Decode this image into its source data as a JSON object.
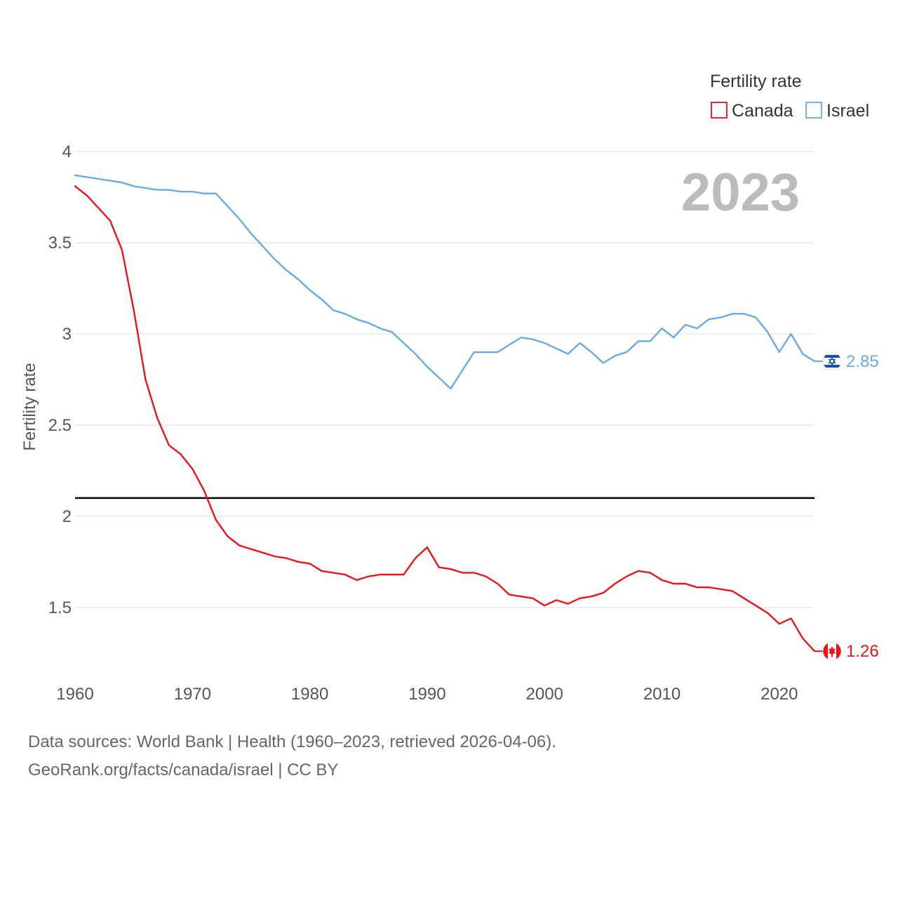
{
  "chart_data": {
    "type": "line",
    "legend_title": "Fertility rate",
    "ylabel": "Fertility rate",
    "xlabel": "",
    "year_label": "2023",
    "xlim": [
      1960,
      2023
    ],
    "ylim": [
      1.08,
      4
    ],
    "x_ticks": [
      1960,
      1970,
      1980,
      1990,
      2000,
      2010,
      2020
    ],
    "y_ticks": [
      1.5,
      2,
      2.5,
      3,
      3.5,
      4
    ],
    "reference_line": 2.1,
    "x": [
      1960,
      1961,
      1962,
      1963,
      1964,
      1965,
      1966,
      1967,
      1968,
      1969,
      1970,
      1971,
      1972,
      1973,
      1974,
      1975,
      1976,
      1977,
      1978,
      1979,
      1980,
      1981,
      1982,
      1983,
      1984,
      1985,
      1986,
      1987,
      1988,
      1989,
      1990,
      1991,
      1992,
      1993,
      1994,
      1995,
      1996,
      1997,
      1998,
      1999,
      2000,
      2001,
      2002,
      2003,
      2004,
      2005,
      2006,
      2007,
      2008,
      2009,
      2010,
      2011,
      2012,
      2013,
      2014,
      2015,
      2016,
      2017,
      2018,
      2019,
      2020,
      2021,
      2022,
      2023
    ],
    "series": [
      {
        "name": "Canada",
        "color": "#e8151b",
        "end_label": "1.26",
        "icon": "canada-flag-icon",
        "values": [
          3.81,
          3.76,
          3.69,
          3.62,
          3.46,
          3.13,
          2.75,
          2.54,
          2.39,
          2.34,
          2.26,
          2.14,
          1.98,
          1.89,
          1.84,
          1.82,
          1.8,
          1.78,
          1.77,
          1.75,
          1.74,
          1.7,
          1.69,
          1.68,
          1.65,
          1.67,
          1.68,
          1.68,
          1.68,
          1.77,
          1.83,
          1.72,
          1.71,
          1.69,
          1.69,
          1.67,
          1.63,
          1.57,
          1.56,
          1.55,
          1.51,
          1.54,
          1.52,
          1.55,
          1.56,
          1.58,
          1.63,
          1.67,
          1.7,
          1.69,
          1.65,
          1.63,
          1.63,
          1.61,
          1.61,
          1.6,
          1.59,
          1.55,
          1.51,
          1.47,
          1.41,
          1.44,
          1.33,
          1.26
        ]
      },
      {
        "name": "Israel",
        "color": "#6aa9e6",
        "end_label": "2.85",
        "icon": "israel-flag-icon",
        "values": [
          3.87,
          3.86,
          3.85,
          3.84,
          3.83,
          3.81,
          3.8,
          3.79,
          3.79,
          3.78,
          3.78,
          3.77,
          3.77,
          3.7,
          3.63,
          3.55,
          3.48,
          3.41,
          3.35,
          3.3,
          3.24,
          3.19,
          3.13,
          3.11,
          3.08,
          3.06,
          3.03,
          3.01,
          2.95,
          2.89,
          2.82,
          2.76,
          2.7,
          2.8,
          2.9,
          2.9,
          2.9,
          2.94,
          2.98,
          2.97,
          2.95,
          2.92,
          2.89,
          2.95,
          2.9,
          2.84,
          2.88,
          2.9,
          2.96,
          2.96,
          3.03,
          2.98,
          3.05,
          3.03,
          3.08,
          3.09,
          3.11,
          3.11,
          3.09,
          3.01,
          2.9,
          3.0,
          2.89,
          2.85
        ]
      }
    ]
  },
  "footer": {
    "source_line_1": "Data sources: World Bank | Health (1960–2023, retrieved 2026-04-06).",
    "source_line_2": "GeoRank.org/facts/canada/israel | CC BY"
  }
}
